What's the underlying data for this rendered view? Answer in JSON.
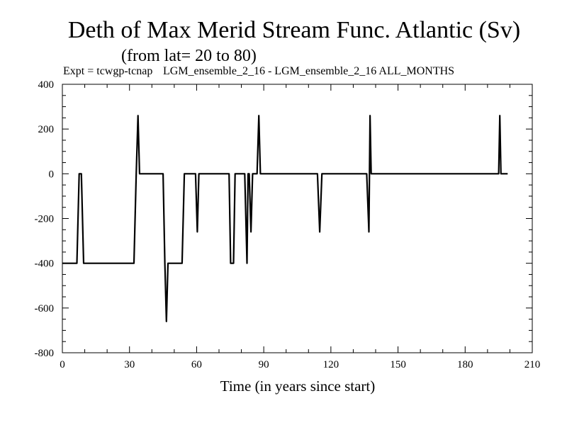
{
  "header": {
    "title": "Deth of Max Merid Stream Func. Atlantic (Sv)",
    "subtitle": "(from lat= 20 to 80)",
    "expt": "Expt = tcwgp-tcnap",
    "run_info": "LGM_ensemble_2_16 - LGM_ensemble_2_16  ALL_MONTHS"
  },
  "chart_data": {
    "type": "line",
    "title": "Deth of Max Merid Stream Func. Atlantic (Sv)",
    "xlabel": "Time (in years since start)",
    "ylabel": "",
    "xlim": [
      0,
      210
    ],
    "ylim": [
      -800,
      400
    ],
    "xticks": [
      0,
      30,
      60,
      90,
      120,
      150,
      180,
      210
    ],
    "yticks": [
      400,
      200,
      0,
      -200,
      -400,
      -600,
      -800
    ],
    "grid": false,
    "line_color": "#000000",
    "series": [
      {
        "x": [
          0,
          6.5,
          7.5,
          8.5,
          9.5,
          10,
          32,
          33,
          33.8,
          34.5,
          35,
          45,
          45.8,
          46.5,
          47.2,
          48,
          53.5,
          54.5,
          55,
          59.5,
          60.3,
          61,
          61.8,
          62.5,
          74.5,
          75.2,
          76.5,
          77.2,
          78,
          81.5,
          82.5,
          83,
          83.5,
          84.3,
          85,
          85.5,
          86.5,
          87,
          87.8,
          88.5,
          89,
          112,
          114,
          115,
          116,
          117,
          135,
          136,
          137,
          137.5,
          138,
          139,
          194,
          195,
          195.5,
          196,
          197,
          199
        ],
        "y": [
          -400,
          -400,
          0,
          0,
          -400,
          -400,
          -400,
          0,
          260,
          0,
          0,
          0,
          -400,
          -660,
          -400,
          -400,
          -400,
          0,
          0,
          0,
          -260,
          0,
          0,
          0,
          0,
          -400,
          -400,
          0,
          0,
          0,
          -400,
          0,
          0,
          -260,
          0,
          0,
          0,
          0,
          260,
          0,
          0,
          0,
          0,
          -260,
          0,
          0,
          0,
          0,
          -260,
          260,
          0,
          0,
          0,
          0,
          260,
          0,
          0,
          0
        ]
      }
    ]
  }
}
